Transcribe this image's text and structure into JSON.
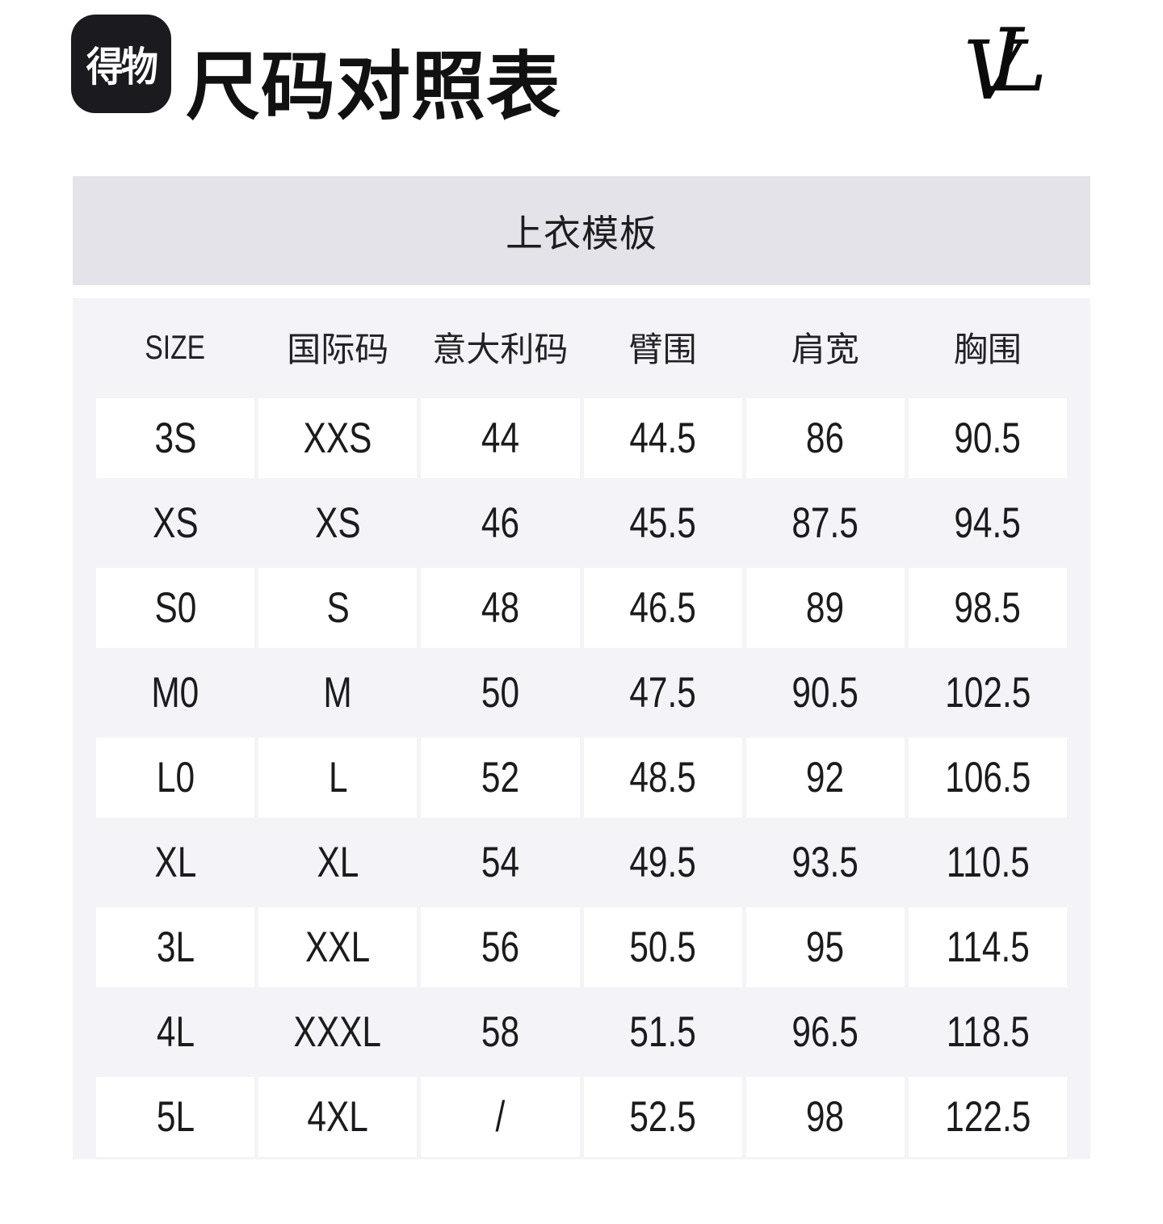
{
  "brand": {
    "app_logo_text": "得物",
    "lv_monogram": {
      "l": "L",
      "v": "V"
    }
  },
  "page": {
    "title": "尺码对照表"
  },
  "section": {
    "title": "上衣模板"
  },
  "table": {
    "headers": [
      "SIZE",
      "国际码",
      "意大利码",
      "臂围",
      "肩宽",
      "胸围"
    ],
    "rows": [
      [
        "3S",
        "XXS",
        "44",
        "44.5",
        "86",
        "90.5"
      ],
      [
        "XS",
        "XS",
        "46",
        "45.5",
        "87.5",
        "94.5"
      ],
      [
        "S0",
        "S",
        "48",
        "46.5",
        "89",
        "98.5"
      ],
      [
        "M0",
        "M",
        "50",
        "47.5",
        "90.5",
        "102.5"
      ],
      [
        "L0",
        "L",
        "52",
        "48.5",
        "92",
        "106.5"
      ],
      [
        "XL",
        "XL",
        "54",
        "49.5",
        "93.5",
        "110.5"
      ],
      [
        "3L",
        "XXL",
        "56",
        "50.5",
        "95",
        "114.5"
      ],
      [
        "4L",
        "XXXL",
        "58",
        "51.5",
        "96.5",
        "118.5"
      ],
      [
        "5L",
        "4XL",
        "/",
        "52.5",
        "98",
        "122.5"
      ]
    ]
  },
  "colors": {
    "page_bg": "#ffffff",
    "logo_badge_bg": "#1a1a1f",
    "logo_text": "#ffffff",
    "section_bar_bg": "#e4e3e9",
    "table_bg": "#f4f4f8",
    "cell_bg": "#ffffff",
    "text": "#1d1d1f"
  }
}
